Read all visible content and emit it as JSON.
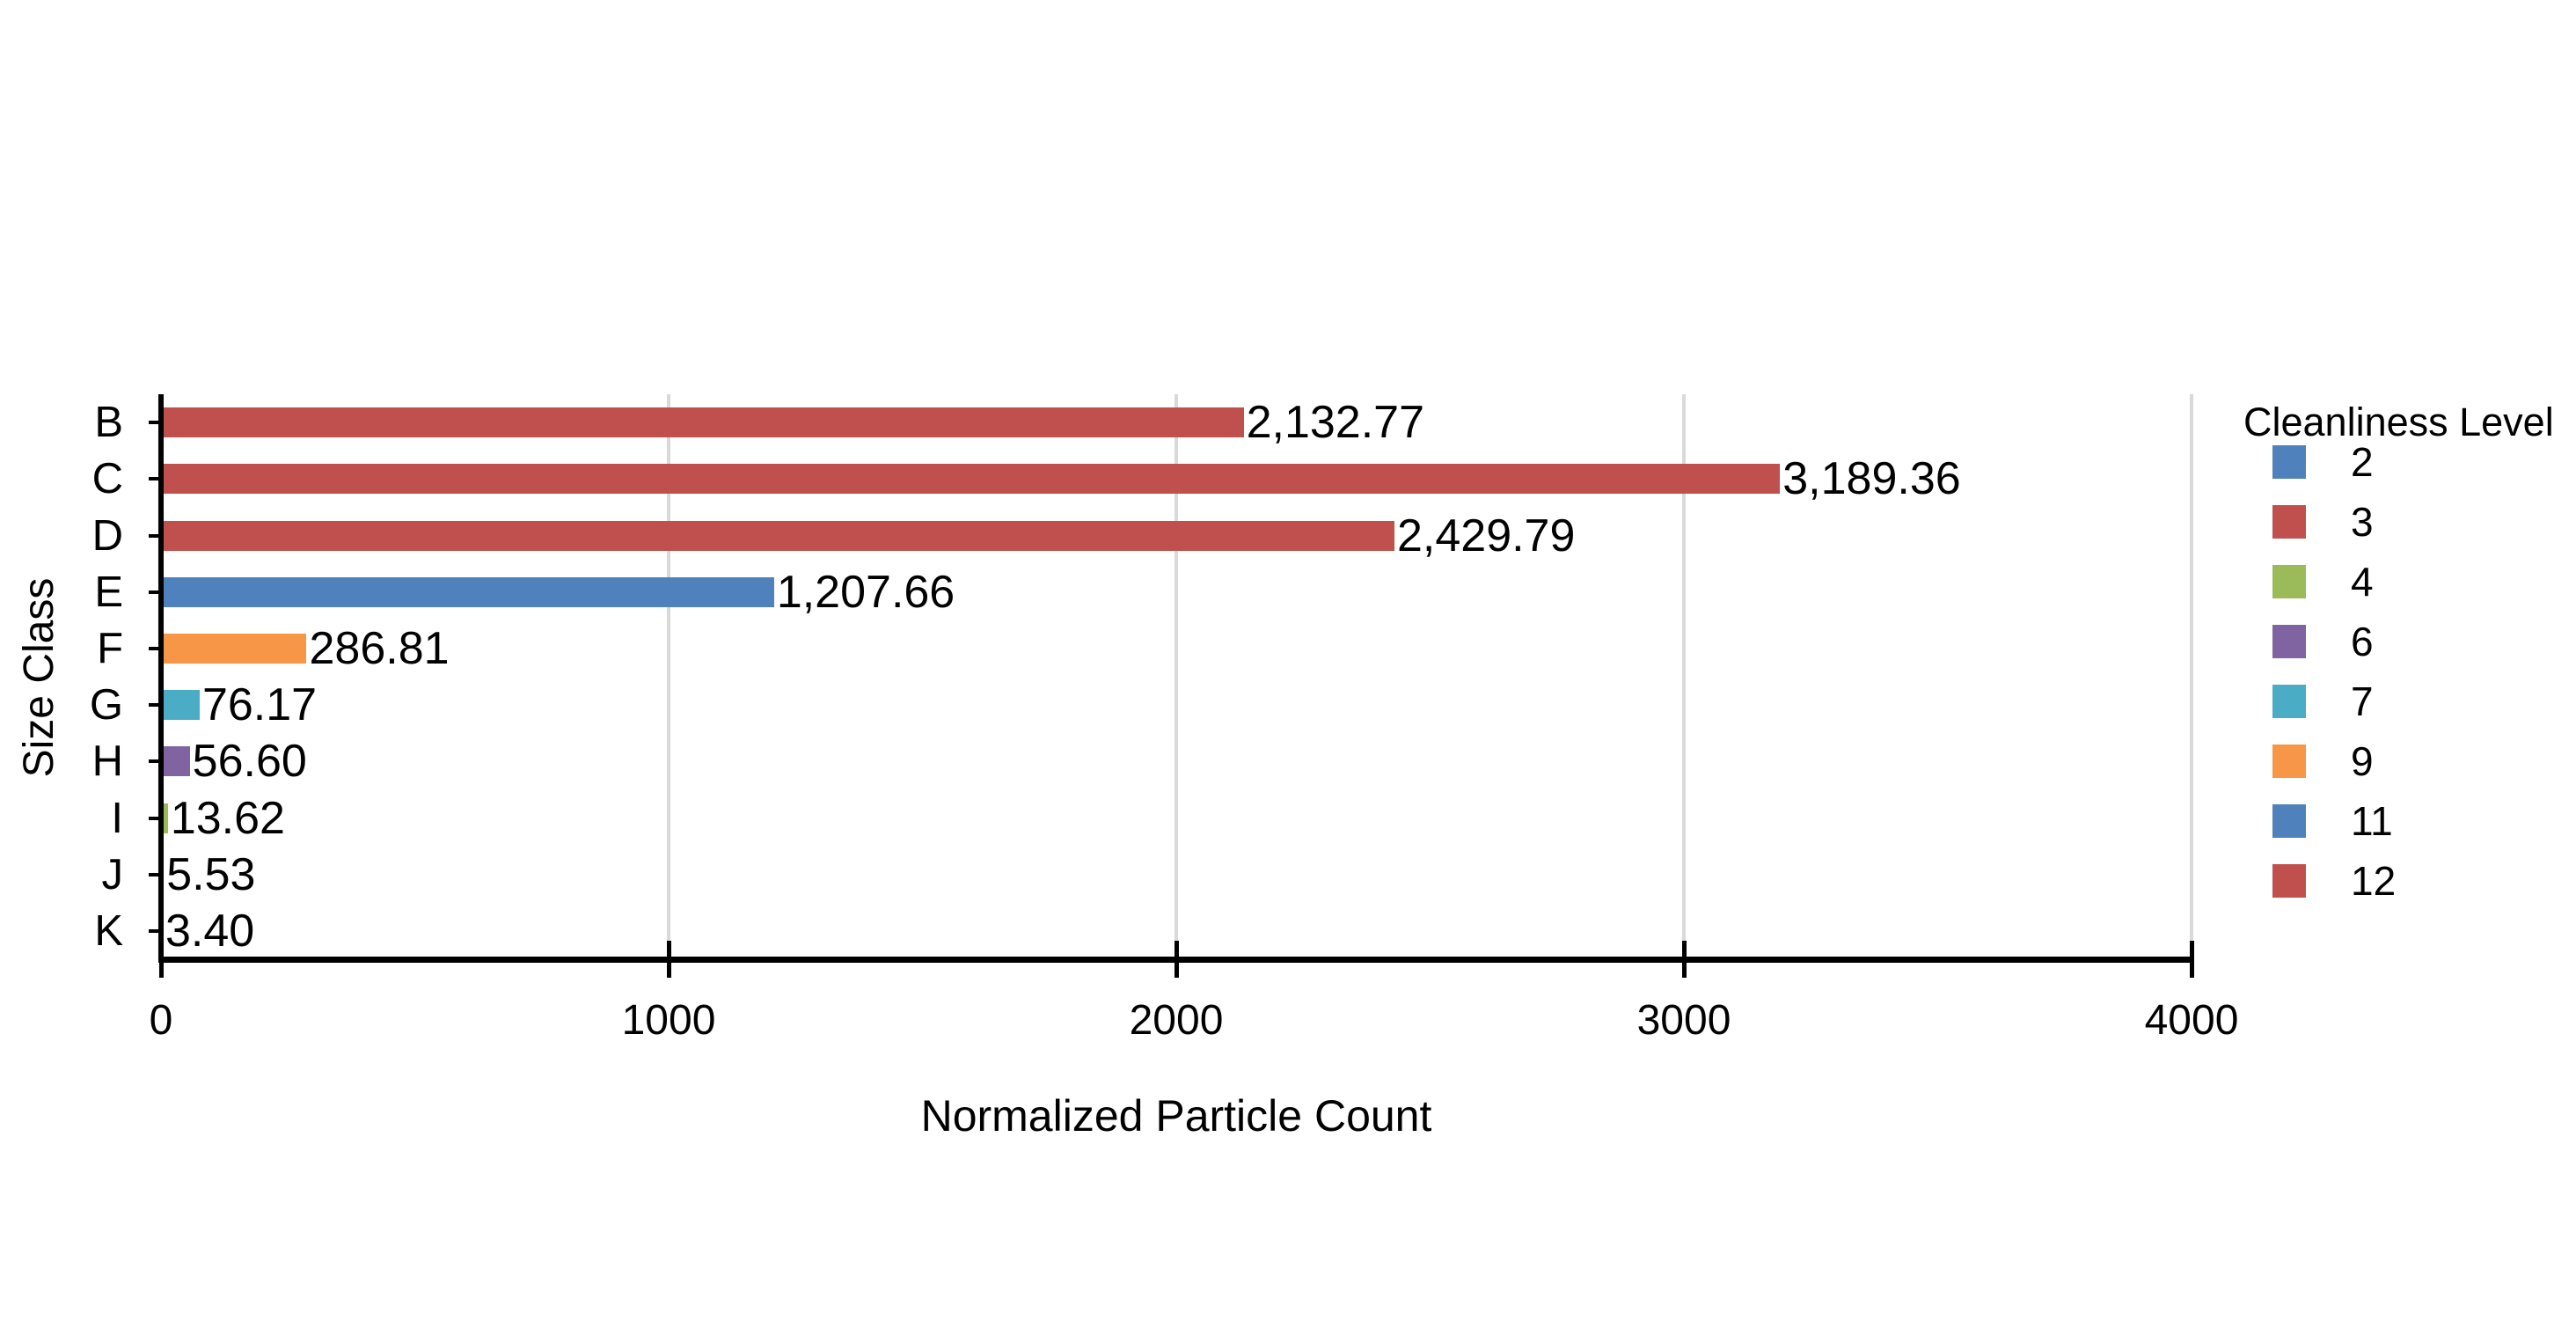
{
  "chart_data": {
    "type": "bar",
    "orientation": "horizontal",
    "title": "",
    "xlabel": "Normalized Particle Count",
    "ylabel": "Size Class",
    "xlim": [
      0,
      4000
    ],
    "xticks": [
      0,
      1000,
      2000,
      3000,
      4000
    ],
    "xtick_labels": [
      "0",
      "1000",
      "2000",
      "3000",
      "4000"
    ],
    "grid": "vertical gridlines at x ticks, light gray",
    "categories": [
      "B",
      "C",
      "D",
      "E",
      "F",
      "G",
      "H",
      "I",
      "J",
      "K"
    ],
    "values": [
      2132.77,
      3189.36,
      2429.79,
      1207.66,
      286.81,
      76.17,
      56.6,
      13.62,
      5.53,
      3.4
    ],
    "value_labels": [
      "2,132.77",
      "3,189.36",
      "2,429.79",
      "1,207.66",
      "286.81",
      "76.17",
      "56.60",
      "13.62",
      "5.53",
      "3.40"
    ],
    "bar_colors": [
      "#C0504D",
      "#C0504D",
      "#C0504D",
      "#4F81BD",
      "#F79646",
      "#4BACC6",
      "#8064A2",
      "#9BBB59",
      "#C0504D",
      "#C0504D"
    ],
    "legend": {
      "title": "Cleanliness Level",
      "position": "right",
      "entries": [
        {
          "label": "2",
          "color": "#4F81BD"
        },
        {
          "label": "3",
          "color": "#C0504D"
        },
        {
          "label": "4",
          "color": "#9BBB59"
        },
        {
          "label": "6",
          "color": "#8064A2"
        },
        {
          "label": "7",
          "color": "#4BACC6"
        },
        {
          "label": "9",
          "color": "#F79646"
        },
        {
          "label": "11",
          "color": "#4F81BD"
        },
        {
          "label": "12",
          "color": "#C0504D"
        }
      ]
    },
    "colors": {
      "axis": "#000000",
      "gridline": "#d9d9d9",
      "background": "#ffffff",
      "text": "#000000"
    }
  }
}
